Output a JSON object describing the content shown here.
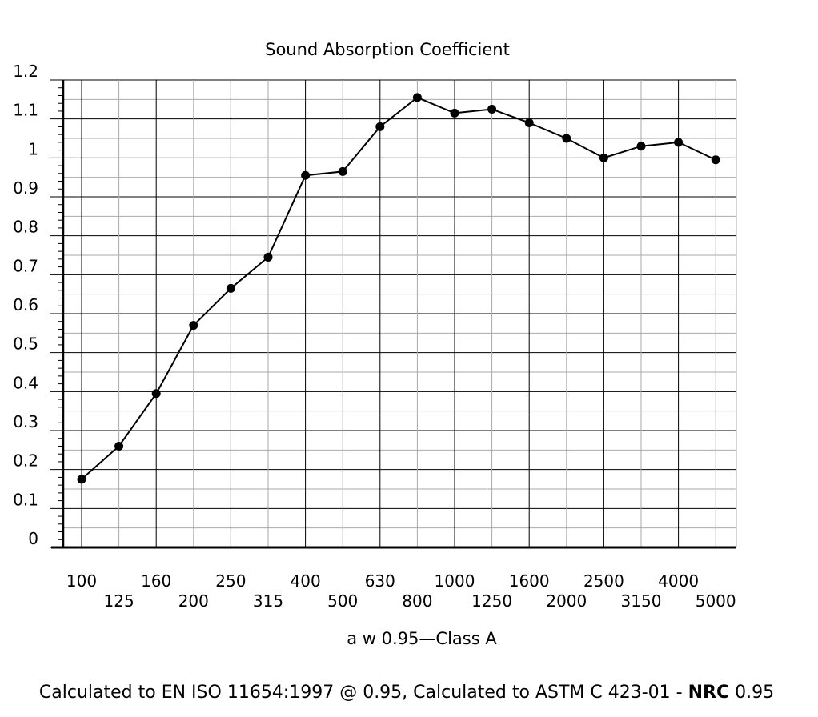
{
  "chart_data": {
    "type": "line",
    "title": "Sound Absorption Coefficient",
    "xlabel": "a w  0.95—Class A",
    "ylabel": "",
    "ylim": [
      0,
      1.2
    ],
    "yticks": [
      "0",
      "0.1",
      "0.2",
      "0.3",
      "0.4",
      "0.5",
      "0.6",
      "0.7",
      "0.8",
      "0.9",
      "1",
      "1.1",
      "1.2"
    ],
    "categories": [
      "100",
      "125",
      "160",
      "200",
      "250",
      "315",
      "400",
      "500",
      "630",
      "800",
      "1000",
      "1250",
      "1600",
      "2000",
      "2500",
      "3150",
      "4000",
      "5000"
    ],
    "series": [
      {
        "values": [
          0.175,
          0.26,
          0.395,
          0.57,
          0.665,
          0.745,
          0.955,
          0.965,
          1.08,
          1.155,
          1.115,
          1.125,
          1.09,
          1.05,
          1.0,
          1.03,
          1.04,
          0.995
        ]
      }
    ],
    "grid": true,
    "line_color": "#000000",
    "grid_major_color": "#000000",
    "grid_minor_color": "#aaaaaa"
  },
  "footer": {
    "text_prefix": "Calculated to EN ISO 11654:1997 @ 0.95, Calculated to ASTM C 423-01 - ",
    "text_bold": "NRC",
    "text_suffix": " 0.95"
  }
}
